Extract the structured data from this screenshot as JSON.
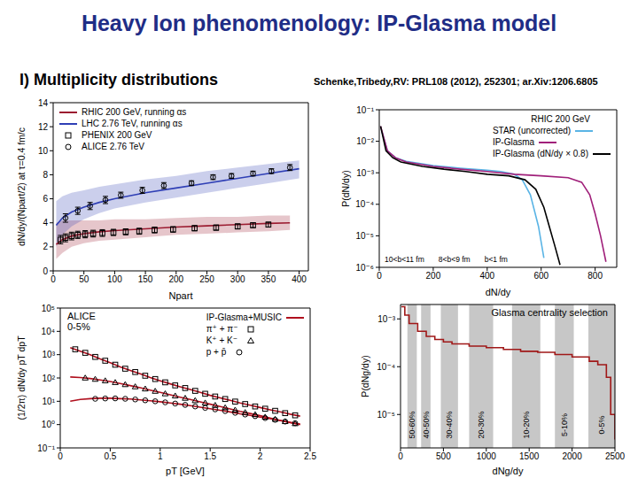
{
  "slide": {
    "title": "Heavy Ion phenomenology: IP-Glasma model",
    "heading": "I) Multiplicity distributions",
    "reference": "Schenke,Tribedy,RV: PRL108 (2012), 252301; ar.Xiv:1206.6805"
  },
  "chart_data": [
    {
      "type": "line",
      "x_label": "Npart",
      "y_label": "dN/dy/(Npart/2) at τ=0.4 fm/c",
      "xlim": [
        0,
        415
      ],
      "xticks": [
        0,
        50,
        100,
        150,
        200,
        250,
        300,
        350,
        400
      ],
      "ylim": [
        0,
        14
      ],
      "yticks": [
        0,
        2,
        4,
        6,
        8,
        10,
        12,
        14
      ],
      "legend": "upper left",
      "series": [
        {
          "name": "RHIC 200 GeV, running αs",
          "type": "line",
          "color": "#9b1b30",
          "x": [
            5,
            15,
            30,
            50,
            75,
            100,
            150,
            200,
            250,
            300,
            350,
            385
          ],
          "values": [
            2.2,
            2.6,
            2.9,
            3.1,
            3.25,
            3.35,
            3.5,
            3.65,
            3.75,
            3.85,
            3.95,
            4.0
          ],
          "band_low": [
            1.0,
            1.5,
            2.0,
            2.3,
            2.5,
            2.6,
            2.8,
            3.0,
            3.1,
            3.2,
            3.3,
            3.4
          ],
          "band_high": [
            4.0,
            4.2,
            4.2,
            4.2,
            4.2,
            4.3,
            4.3,
            4.4,
            4.5,
            4.5,
            4.6,
            4.6
          ]
        },
        {
          "name": "LHC 2.76 TeV, running αs",
          "type": "line",
          "color": "#2f3fb5",
          "x": [
            5,
            15,
            30,
            50,
            75,
            100,
            150,
            200,
            250,
            300,
            350,
            400
          ],
          "values": [
            3.8,
            4.4,
            4.9,
            5.3,
            5.7,
            6.0,
            6.5,
            6.9,
            7.3,
            7.7,
            8.1,
            8.5
          ],
          "band_low": [
            2.0,
            3.0,
            3.7,
            4.3,
            4.8,
            5.2,
            5.7,
            6.1,
            6.5,
            6.9,
            7.3,
            7.7
          ],
          "band_high": [
            5.8,
            6.2,
            6.5,
            6.7,
            7.0,
            7.2,
            7.6,
            7.9,
            8.3,
            8.6,
            8.9,
            9.2
          ]
        },
        {
          "name": "PHENIX 200 GeV",
          "type": "scatter",
          "marker": "square",
          "color": "#000000",
          "x": [
            12,
            20,
            30,
            40,
            52,
            65,
            80,
            98,
            118,
            140,
            165,
            195,
            230,
            265,
            300,
            325,
            350
          ],
          "values": [
            2.6,
            2.75,
            2.9,
            3.0,
            3.05,
            3.1,
            3.15,
            3.2,
            3.25,
            3.3,
            3.4,
            3.45,
            3.55,
            3.6,
            3.7,
            3.8,
            3.85
          ],
          "errors": [
            0.35,
            0.33,
            0.32,
            0.3,
            0.3,
            0.28,
            0.28,
            0.26,
            0.25,
            0.25,
            0.24,
            0.23,
            0.22,
            0.22,
            0.21,
            0.2,
            0.2
          ]
        },
        {
          "name": "ALICE 2.76 TeV",
          "type": "scatter",
          "marker": "circle",
          "color": "#000000",
          "x": [
            20,
            40,
            60,
            85,
            110,
            145,
            180,
            225,
            260,
            290,
            325,
            355,
            385
          ],
          "values": [
            4.4,
            5.0,
            5.4,
            5.9,
            6.3,
            6.7,
            7.1,
            7.3,
            7.8,
            7.9,
            8.1,
            8.3,
            8.6
          ],
          "errors": [
            0.35,
            0.3,
            0.3,
            0.3,
            0.25,
            0.25,
            0.25,
            0.2,
            0.2,
            0.2,
            0.2,
            0.2,
            0.25
          ]
        }
      ]
    },
    {
      "type": "line",
      "x_label": "dN/dy",
      "y_label": "P(dN/dy)",
      "log": "y",
      "xlim": [
        0,
        880
      ],
      "xticks": [
        0,
        200,
        400,
        600,
        800
      ],
      "ylim": [
        1e-06,
        0.1
      ],
      "yticks": [
        {
          "value": 0.1,
          "label": "10⁻¹"
        },
        {
          "value": 0.01,
          "label": "10⁻²"
        },
        {
          "value": 0.001,
          "label": "10⁻³"
        },
        {
          "value": 0.0001,
          "label": "10⁻⁴"
        },
        {
          "value": 1e-05,
          "label": "10⁻⁵"
        },
        {
          "value": 1e-06,
          "label": "10⁻⁶"
        }
      ],
      "legend": "upper right",
      "legend_title": "RHIC 200 GeV",
      "annotations": [
        "10<b<11 fm",
        "8<b<9 fm",
        "b<1 fm"
      ],
      "series": [
        {
          "name": "STAR (uncorrected)",
          "color": "#5ab4e5",
          "x": [
            10,
            30,
            60,
            100,
            200,
            300,
            400,
            450,
            500,
            530,
            560,
            590,
            610
          ],
          "values": [
            0.02,
            0.005,
            0.003,
            0.0023,
            0.0017,
            0.0014,
            0.0012,
            0.0011,
            0.0009,
            0.0006,
            0.0002,
            2e-05,
            2e-06
          ]
        },
        {
          "name": "IP-Glasma",
          "color": "#a0207a",
          "x": [
            5,
            30,
            60,
            100,
            200,
            300,
            400,
            500,
            600,
            700,
            750,
            780,
            800,
            820,
            840
          ],
          "values": [
            0.03,
            0.005,
            0.003,
            0.0022,
            0.0016,
            0.0013,
            0.0011,
            0.0009,
            0.0008,
            0.0007,
            0.0005,
            0.0002,
            5e-05,
            1e-05,
            1.5e-06
          ]
        },
        {
          "name": "IP-Glasma (dN/dy × 0.8)",
          "color": "#000000",
          "x": [
            5,
            25,
            50,
            80,
            160,
            240,
            320,
            400,
            480,
            540,
            580,
            610,
            630,
            650,
            670
          ],
          "values": [
            0.03,
            0.005,
            0.003,
            0.0022,
            0.0016,
            0.0013,
            0.0011,
            0.0009,
            0.0008,
            0.0006,
            0.0003,
            8e-05,
            2e-05,
            5e-06,
            1.2e-06
          ]
        }
      ]
    },
    {
      "type": "line",
      "x_label": "pT [GeV]",
      "y_label": "(1/2π) dN/dy pT dpT",
      "log": "y",
      "xlim": [
        0,
        2.5
      ],
      "xticks": [
        0,
        0.5,
        1,
        1.5,
        2,
        2.5
      ],
      "ylim": [
        0.1,
        100000
      ],
      "yticks": [
        {
          "value": 0.1,
          "label": "10⁻¹"
        },
        {
          "value": 1,
          "label": "10⁰"
        },
        {
          "value": 10,
          "label": "10¹"
        },
        {
          "value": 100,
          "label": "10²"
        },
        {
          "value": 1000,
          "label": "10³"
        },
        {
          "value": 10000,
          "label": "10⁴"
        },
        {
          "value": 100000,
          "label": "10⁵"
        }
      ],
      "legend": "upper right",
      "annotations": [
        "ALICE",
        "0-5%"
      ],
      "series": [
        {
          "name": "IP-Glasma+MUSIC",
          "type": "line",
          "color": "#b0101e",
          "x": [
            0.1,
            0.2,
            0.3,
            0.4,
            0.5,
            0.6,
            0.7,
            0.8,
            0.9,
            1.0,
            1.1,
            1.2,
            1.3,
            1.4,
            1.5,
            1.6,
            1.7,
            1.8,
            1.9,
            2.0,
            2.1,
            2.2,
            2.3,
            2.4
          ],
          "values": [
            2000,
            1400,
            1000,
            660,
            450,
            300,
            210,
            150,
            105,
            76,
            56,
            42,
            32,
            24,
            18,
            14,
            11,
            8.5,
            6.8,
            5.4,
            4.3,
            3.5,
            2.8,
            2.3
          ]
        },
        {
          "name": "IP-Glasma+MUSIC",
          "type": "line",
          "color": "#b0101e",
          "x": [
            0.1,
            0.2,
            0.3,
            0.4,
            0.5,
            0.6,
            0.7,
            0.8,
            0.9,
            1.0,
            1.1,
            1.2,
            1.3,
            1.4,
            1.5,
            1.6,
            1.7,
            1.8,
            1.9,
            2.0,
            2.1,
            2.2,
            2.3,
            2.4
          ],
          "values": [
            110,
            105,
            95,
            82,
            70,
            58,
            47,
            38,
            30,
            24,
            19,
            15,
            12,
            9.5,
            7.5,
            6,
            4.7,
            3.7,
            3,
            2.4,
            1.9,
            1.5,
            1.2,
            1.0
          ]
        },
        {
          "name": "IP-Glasma+MUSIC",
          "type": "line",
          "color": "#b0101e",
          "x": [
            0.1,
            0.2,
            0.3,
            0.4,
            0.5,
            0.6,
            0.7,
            0.8,
            0.9,
            1.0,
            1.1,
            1.2,
            1.3,
            1.4,
            1.5,
            1.6,
            1.7,
            1.8,
            1.9,
            2.0,
            2.1,
            2.2,
            2.3,
            2.4
          ],
          "values": [
            10,
            12,
            13,
            13.5,
            13.5,
            13,
            12.5,
            11.5,
            10.5,
            9.5,
            8.5,
            7.5,
            6.5,
            5.6,
            4.8,
            4.1,
            3.5,
            2.9,
            2.5,
            2.1,
            1.8,
            1.5,
            1.25,
            1.05
          ]
        },
        {
          "name": "π⁺ + π⁻",
          "type": "scatter",
          "marker": "square",
          "color": "#000000",
          "x": [
            0.15,
            0.25,
            0.35,
            0.45,
            0.55,
            0.65,
            0.75,
            0.85,
            0.95,
            1.05,
            1.15,
            1.25,
            1.35,
            1.45,
            1.55,
            1.65,
            1.75,
            1.85,
            1.95,
            2.05,
            2.15,
            2.25,
            2.35
          ],
          "values": [
            1700,
            1200,
            800,
            550,
            370,
            250,
            180,
            125,
            90,
            65,
            48,
            37,
            28,
            21,
            16,
            12.5,
            9.7,
            7.6,
            6,
            4.8,
            3.9,
            3.1,
            2.5
          ]
        },
        {
          "name": "K⁺ + K⁻",
          "type": "scatter",
          "marker": "triangle",
          "color": "#000000",
          "x": [
            0.25,
            0.35,
            0.45,
            0.55,
            0.65,
            0.75,
            0.85,
            0.95,
            1.05,
            1.15,
            1.25,
            1.35,
            1.45,
            1.55,
            1.65,
            1.75,
            1.85,
            1.95,
            2.05,
            2.15,
            2.25,
            2.35
          ],
          "values": [
            100,
            88,
            76,
            64,
            52,
            42,
            34,
            27,
            21,
            17,
            13.5,
            10.7,
            8.5,
            6.7,
            5.3,
            4.2,
            3.3,
            2.7,
            2.1,
            1.7,
            1.35,
            1.1
          ]
        },
        {
          "name": "p + p̄",
          "type": "scatter",
          "marker": "circle",
          "color": "#000000",
          "x": [
            0.35,
            0.45,
            0.55,
            0.65,
            0.75,
            0.85,
            0.95,
            1.05,
            1.15,
            1.25,
            1.35,
            1.45,
            1.55,
            1.65,
            1.75,
            1.85,
            1.95,
            2.05,
            2.15,
            2.25,
            2.35
          ],
          "values": [
            12.8,
            13.2,
            13.3,
            12.8,
            12.0,
            11.0,
            10.0,
            9.0,
            8.0,
            7.0,
            6.0,
            5.2,
            4.5,
            3.8,
            3.2,
            2.7,
            2.3,
            1.9,
            1.6,
            1.35,
            1.15
          ]
        }
      ]
    },
    {
      "type": "line",
      "title": "Glasma centrality selection",
      "x_label": "dNg/dy",
      "y_label": "P(dNg/dy)",
      "log": "y",
      "xlim": [
        0,
        2500
      ],
      "xticks": [
        0,
        500,
        1000,
        1500,
        2000,
        2500
      ],
      "ylim": [
        2e-06,
        0.002
      ],
      "yticks": [
        {
          "value": 0.001,
          "label": "10⁻³"
        },
        {
          "value": 0.0001,
          "label": "10⁻⁴"
        },
        {
          "value": 1e-05,
          "label": "10⁻⁵"
        }
      ],
      "bands": [
        {
          "label": "50-60%",
          "x": [
            80,
            190
          ]
        },
        {
          "label": "40-50%",
          "x": [
            240,
            350
          ]
        },
        {
          "label": "30-40%",
          "x": [
            470,
            670
          ]
        },
        {
          "label": "20-30%",
          "x": [
            800,
            1080
          ]
        },
        {
          "label": "10-20%",
          "x": [
            1300,
            1630
          ]
        },
        {
          "label": "5-10%",
          "x": [
            1800,
            2020
          ]
        },
        {
          "label": "0-5%",
          "x": [
            2190,
            2500
          ]
        }
      ],
      "series": [
        {
          "color": "#a01818",
          "line_style": "step",
          "x": [
            10,
            50,
            100,
            200,
            300,
            400,
            500,
            600,
            800,
            1000,
            1200,
            1400,
            1600,
            1800,
            2000,
            2200,
            2300,
            2400,
            2450,
            2500
          ],
          "values": [
            0.0018,
            0.0012,
            0.0008,
            0.00055,
            0.00043,
            0.00037,
            0.00033,
            0.0003,
            0.00027,
            0.00025,
            0.00023,
            0.00021,
            0.0002,
            0.00018,
            0.00016,
            0.00013,
            0.00011,
            6e-05,
            1e-05,
            3e-06
          ]
        }
      ]
    }
  ]
}
